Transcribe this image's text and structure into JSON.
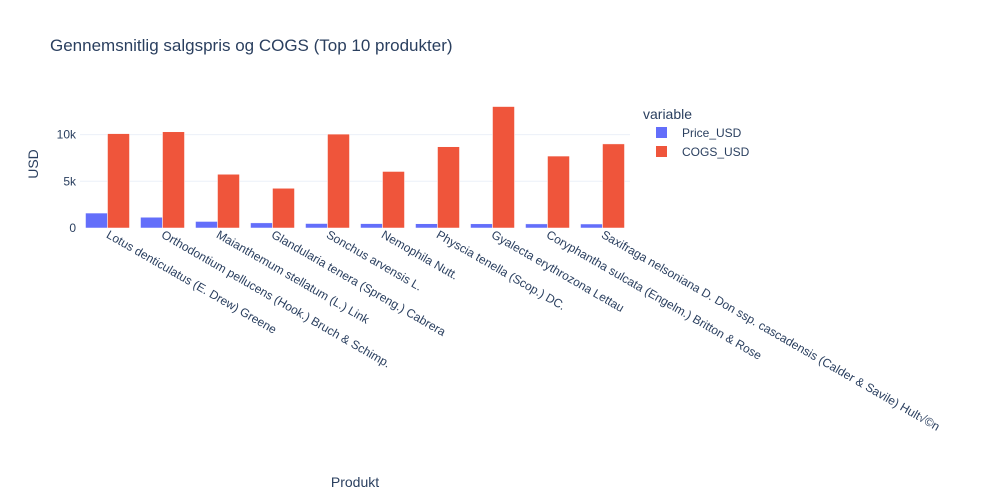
{
  "chart_data": {
    "type": "bar",
    "title": "Gennemsnitlig salgspris og COGS (Top 10 produkter)",
    "xlabel": "Produkt",
    "ylabel": "USD",
    "categories": [
      "Lotus denticulatus (E. Drew) Greene",
      "Orthodontium pellucens (Hook.) Bruch & Schimp.",
      "Maianthemum stellatum (L.) Link",
      "Glandularia tenera (Spreng.) Cabrera",
      "Sonchus arvensis L.",
      "Nemophila Nutt.",
      "Physcia tenella (Scop.) DC.",
      "Gyalecta erythrozona Lettau",
      "Coryphantha sulcata (Engelm.) Britton & Rose",
      "Saxifraga nelsoniana D. Don ssp. cascadensis (Calder & Savile) Hult√©n"
    ],
    "series": [
      {
        "name": "Price_USD",
        "color": "#636efa",
        "values": [
          1600,
          1150,
          700,
          550,
          480,
          470,
          460,
          450,
          440,
          430
        ]
      },
      {
        "name": "COGS_USD",
        "color": "#ef553b",
        "values": [
          10100,
          10300,
          5750,
          4250,
          10050,
          6050,
          8700,
          13000,
          7700,
          9000
        ]
      }
    ],
    "ylim": [
      0,
      13700
    ],
    "yticks": [
      0,
      5000,
      10000
    ],
    "yticklabels": [
      "0",
      "5k",
      "10k"
    ],
    "legend": {
      "title": "variable",
      "placement": "right"
    },
    "grid": true
  }
}
